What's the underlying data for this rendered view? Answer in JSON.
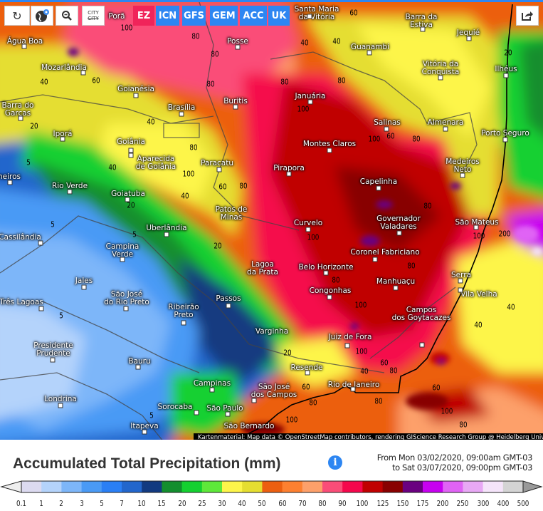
{
  "toolbar": {
    "buttons": [
      {
        "name": "reload",
        "icon": "reload-icon"
      },
      {
        "name": "globe",
        "icon": "globe-location-icon"
      },
      {
        "name": "zoom-out",
        "icon": "zoom-out-icon"
      },
      {
        "name": "city-toggle",
        "icon": "city-labels-icon",
        "label": "CITY"
      }
    ],
    "models": [
      {
        "label": "EZ",
        "active": true
      },
      {
        "label": "ICN",
        "active": false
      },
      {
        "label": "GFS",
        "active": false
      },
      {
        "label": "GEM",
        "active": false
      },
      {
        "label": "ACC",
        "active": false
      },
      {
        "label": "UK",
        "active": false
      }
    ],
    "share_icon": "share-icon",
    "colors": {
      "active": "#f0245a",
      "inactive": "#2d86f2"
    }
  },
  "map": {
    "cities": [
      "Porã",
      "Santa Maria\nda Vitória",
      "Água Boa",
      "Mozarlândia",
      "Posse",
      "Goianésia",
      "Brasília",
      "Buritis",
      "Barra do\nGarças",
      "Iporá",
      "Goiânia",
      "Aparecida\nde Goiânia",
      "Paracatu",
      "Rio Verde",
      "Goiatuba",
      "Patos de\nMinas",
      "neiros",
      "Januária",
      "Guanambi",
      "Barra da\nEstiva",
      "Jequié",
      "Vitória da\nConquista",
      "Ilhéus",
      "Salinas",
      "Almenara",
      "Porto Seguro",
      "Montes Claros",
      "Pirapora",
      "Capelinha",
      "Medeiros\nNeto",
      "Governador\nValadares",
      "São Mateus",
      "Uberlândia",
      "Curvelo",
      "Cassilândia",
      "Campina\nVerde",
      "Coronel Fabriciano",
      "Lagoa\nda Prata",
      "Belo Horizonte",
      "Jales",
      "Serra",
      "Manhuaçu",
      "Vila Velha",
      "Congonhas",
      "São José\ndo Rio Preto",
      "Passos",
      "Três Lagoas",
      "Ribeirão\nPreto",
      "Campos\ndos Goytacazes",
      "Varginha",
      "Juiz de Fora",
      "Presidente\nPrudente",
      "Resende",
      "Bauru",
      "Campinas",
      "São José\ndos Campos",
      "Rio de Janeiro",
      "Londrina",
      "Sorocaba",
      "São Paulo",
      "Itapeva",
      "São Bernardo"
    ],
    "contour_labels": [
      "100",
      "80",
      "80",
      "80",
      "40",
      "60",
      "40",
      "40",
      "20",
      "5",
      "40",
      "20",
      "80",
      "100",
      "60",
      "80",
      "40",
      "60",
      "40",
      "80",
      "20",
      "100",
      "80",
      "60",
      "80",
      "100",
      "100",
      "80",
      "80",
      "5",
      "5",
      "20",
      "5",
      "5",
      "100",
      "80",
      "100",
      "40",
      "40",
      "100",
      "40",
      "20",
      "60",
      "60",
      "80",
      "80",
      "100",
      "80",
      "60",
      "100",
      "80",
      "200"
    ],
    "attribution": "Kartenmaterial: Map data © OpenStreetMap contributors, rendering GIScience Research Group @ Heidelberg University"
  },
  "legend": {
    "title": "Accumulated Total Precipitation (mm)",
    "info_icon": "info-icon",
    "date_from": "From Mon 03/02/2020, 09:00am GMT-03",
    "date_to": "to Sat 03/07/2020, 09:00pm GMT-03",
    "ticks": [
      "0.1",
      "1",
      "2",
      "3",
      "5",
      "7",
      "10",
      "15",
      "20",
      "25",
      "30",
      "40",
      "50",
      "60",
      "70",
      "80",
      "90",
      "100",
      "125",
      "150",
      "175",
      "200",
      "250",
      "300",
      "400",
      "500"
    ],
    "colors": [
      "#dcdaf0",
      "#b4d3fb",
      "#7db6f9",
      "#4a9af5",
      "#2a7ff5",
      "#2266cc",
      "#123a80",
      "#138e2e",
      "#14d030",
      "#5ee83a",
      "#fdf54a",
      "#e5de30",
      "#ec5f10",
      "#fd8030",
      "#fda06a",
      "#fa4d78",
      "#f5074c",
      "#c00000",
      "#880000",
      "#6a0080",
      "#c700f0",
      "#e063f5",
      "#e8a8f5",
      "#f5e4fa",
      "#d4d4d4"
    ],
    "below_color": "#eeeeee",
    "above_color": "#999999"
  }
}
